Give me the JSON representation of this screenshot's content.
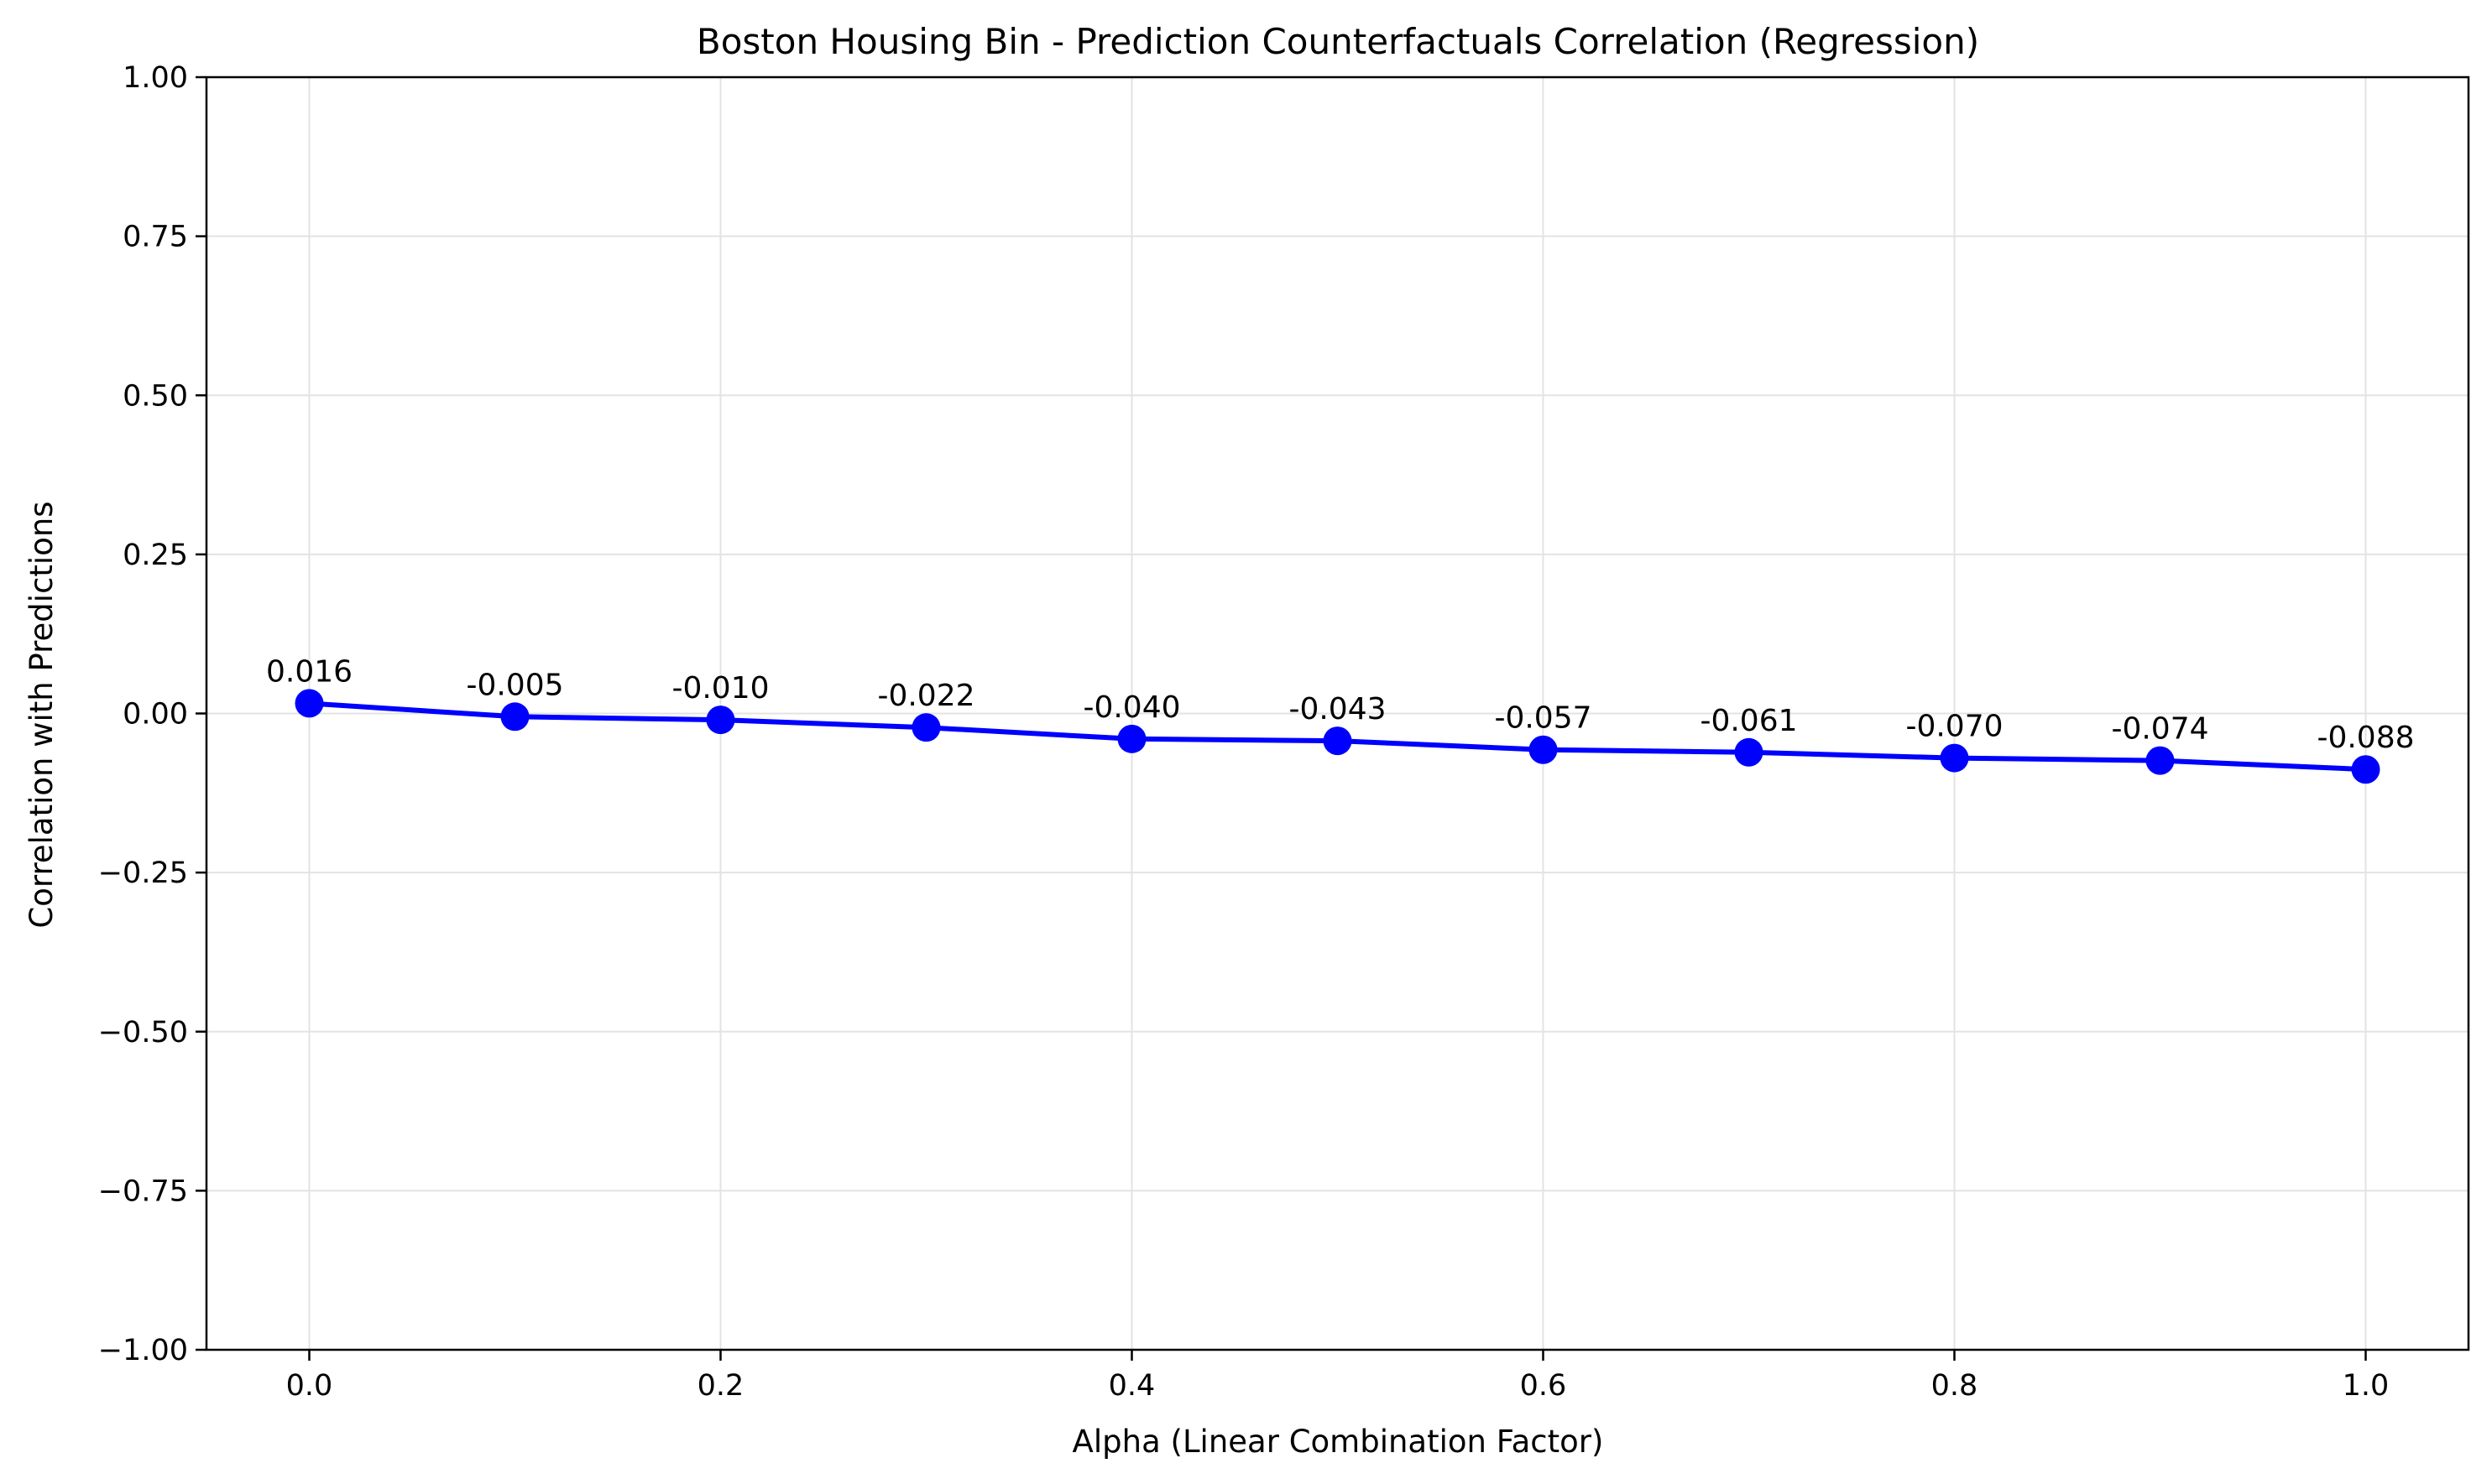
{
  "chart_data": {
    "type": "line",
    "title": "Boston Housing Bin - Prediction Counterfactuals Correlation (Regression)",
    "xlabel": "Alpha (Linear Combination Factor)",
    "ylabel": "Correlation with Predictions",
    "x": [
      0.0,
      0.1,
      0.2,
      0.3,
      0.4,
      0.5,
      0.6,
      0.7,
      0.8,
      0.9,
      1.0
    ],
    "series": [
      {
        "values": [
          0.016,
          -0.005,
          -0.01,
          -0.022,
          -0.04,
          -0.043,
          -0.057,
          -0.061,
          -0.07,
          -0.074,
          -0.088
        ],
        "data_labels": [
          "0.016",
          "-0.005",
          "-0.010",
          "-0.022",
          "-0.040",
          "-0.043",
          "-0.057",
          "-0.061",
          "-0.070",
          "-0.074",
          "-0.088"
        ],
        "color": "#0000ff",
        "marker": "circle"
      }
    ],
    "xlim": [
      -0.05,
      1.05
    ],
    "ylim": [
      -1.0,
      1.0
    ],
    "x_ticks": [
      0.0,
      0.2,
      0.4,
      0.6,
      0.8,
      1.0
    ],
    "x_tick_labels": [
      "0.0",
      "0.2",
      "0.4",
      "0.6",
      "0.8",
      "1.0"
    ],
    "y_ticks": [
      -1.0,
      -0.75,
      -0.5,
      -0.25,
      0.0,
      0.25,
      0.5,
      0.75,
      1.0
    ],
    "y_tick_labels": [
      "−1.00",
      "−0.75",
      "−0.50",
      "−0.25",
      "0.00",
      "0.25",
      "0.50",
      "0.75",
      "1.00"
    ],
    "grid": true,
    "legend": "none"
  }
}
